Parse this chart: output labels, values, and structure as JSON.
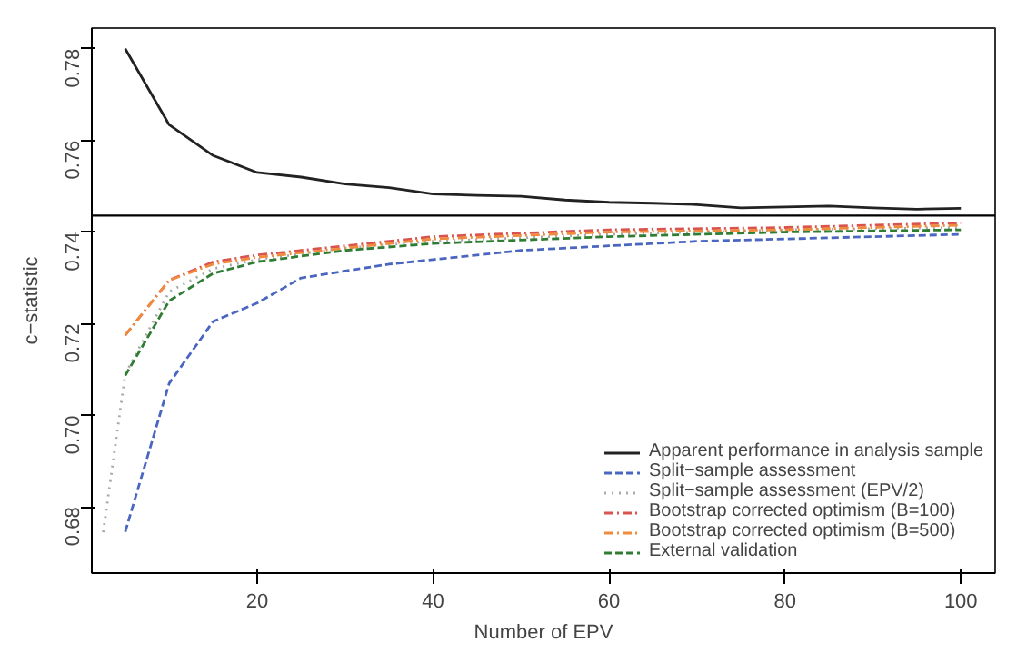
{
  "chart_data": {
    "type": "line",
    "xlabel": "Number of EPV",
    "ylabel": "c−statistic",
    "xlim": [
      1.2,
      103.9
    ],
    "ylim": [
      0.6656,
      0.7845
    ],
    "xticks": [
      20,
      40,
      60,
      80,
      100
    ],
    "yticks": [
      0.68,
      {
        "value": 0.7,
        "label": "0.70"
      },
      0.72,
      0.74,
      0.76,
      0.78
    ],
    "grid": false,
    "legend": "bottom right",
    "marker": "none",
    "ref_lines": [
      {
        "axis": "y",
        "value": 0.7436,
        "color": "#000000",
        "line_style": "solid"
      }
    ],
    "series": [
      {
        "name": "Apparent performance in analysis sample",
        "color": "#222222",
        "line_style": "solid",
        "x": [
          5,
          10,
          15,
          20,
          25,
          30,
          35,
          40,
          45,
          50,
          55,
          60,
          65,
          70,
          75,
          80,
          85,
          90,
          95,
          100
        ],
        "values": [
          0.78,
          0.7634,
          0.7567,
          0.753,
          0.752,
          0.7505,
          0.7497,
          0.7483,
          0.748,
          0.7478,
          0.747,
          0.7465,
          0.7463,
          0.746,
          0.7453,
          0.7455,
          0.7457,
          0.7453,
          0.745,
          0.7452
        ]
      },
      {
        "name": "Split−sample assessment",
        "color": "#4a66c0",
        "line_style": "dashed",
        "x": [
          5,
          10,
          15,
          20,
          25,
          30,
          35,
          40,
          45,
          50,
          60,
          70,
          80,
          90,
          100
        ],
        "values": [
          0.6746,
          0.707,
          0.7205,
          0.7245,
          0.73,
          0.7315,
          0.733,
          0.734,
          0.735,
          0.736,
          0.737,
          0.738,
          0.7385,
          0.739,
          0.7395
        ]
      },
      {
        "name": "Split−sample assessment (EPV/2)",
        "color": "#aaaaaa",
        "line_style": "dotted",
        "x": [
          2.5,
          5,
          10,
          15,
          20,
          30,
          40,
          60,
          80,
          100
        ],
        "values": [
          0.6745,
          0.709,
          0.727,
          0.732,
          0.734,
          0.7365,
          0.738,
          0.7395,
          0.7405,
          0.741
        ]
      },
      {
        "name": "Bootstrap corrected optimism (B=100)",
        "color": "#d9534f",
        "line_style": "dashdot",
        "x": [
          5,
          10,
          15,
          20,
          30,
          40,
          60,
          80,
          100
        ],
        "values": [
          0.7175,
          0.7295,
          0.7335,
          0.735,
          0.737,
          0.739,
          0.7405,
          0.741,
          0.742
        ]
      },
      {
        "name": "Bootstrap corrected optimism (B=500)",
        "color": "#f08a3c",
        "line_style": "dashdot",
        "x": [
          5,
          10,
          15,
          20,
          30,
          40,
          60,
          80,
          100
        ],
        "values": [
          0.7175,
          0.7295,
          0.733,
          0.7345,
          0.7365,
          0.7385,
          0.74,
          0.7405,
          0.7415
        ]
      },
      {
        "name": "External validation",
        "color": "#2e7d32",
        "line_style": "dashed",
        "x": [
          5,
          10,
          15,
          20,
          30,
          40,
          60,
          80,
          100
        ],
        "values": [
          0.7087,
          0.725,
          0.731,
          0.7335,
          0.736,
          0.7375,
          0.739,
          0.74,
          0.7405
        ]
      }
    ]
  }
}
